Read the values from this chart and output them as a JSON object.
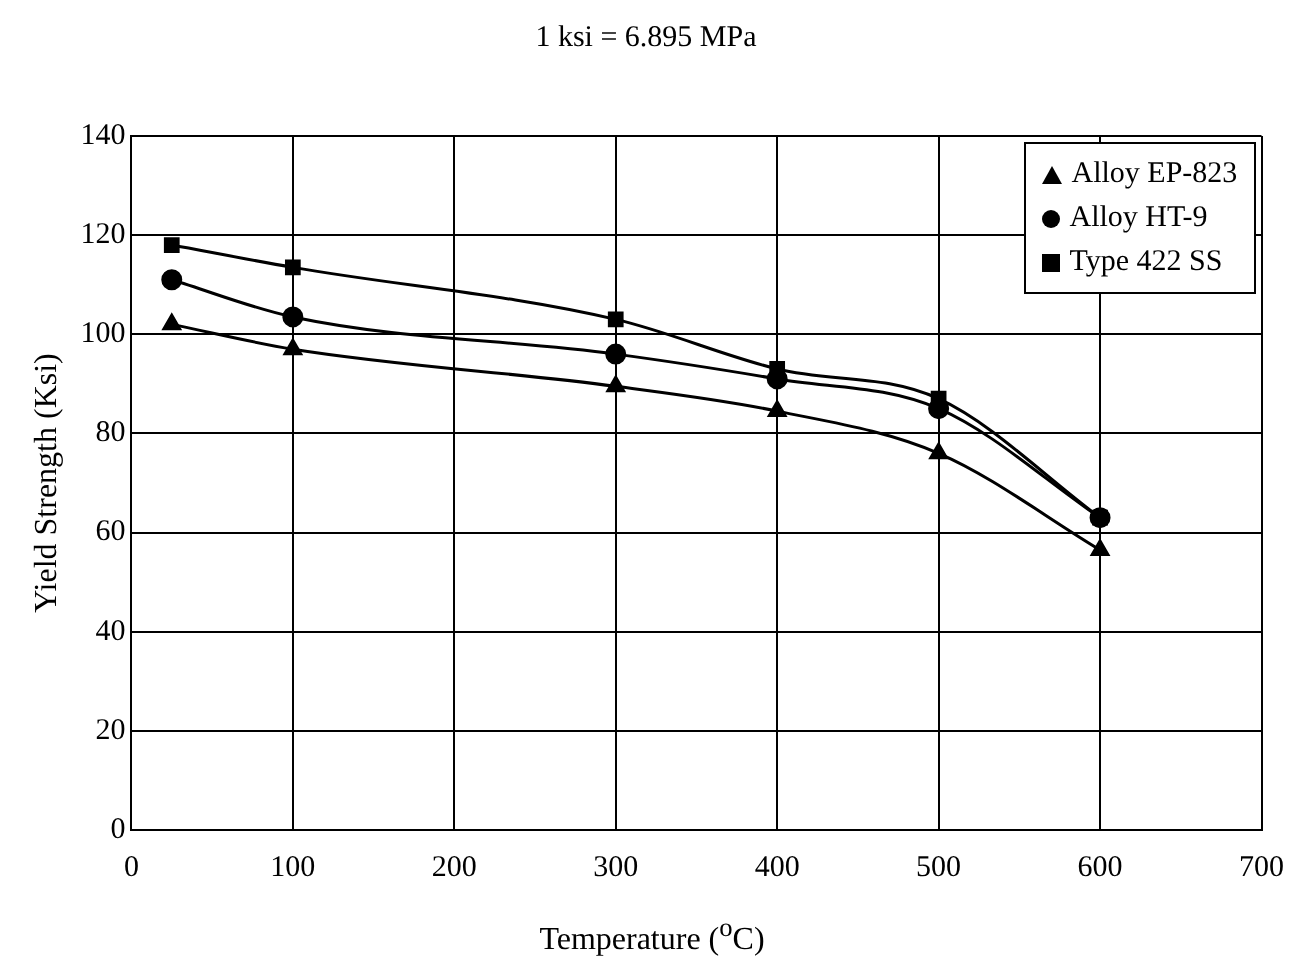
{
  "chart_data": {
    "type": "line",
    "title": "1 ksi = 6.895 MPa",
    "xlabel": "Temperature ($^{o}$C)",
    "ylabel": "Yield Strength (Ksi)",
    "x": [
      25,
      100,
      300,
      400,
      500,
      600
    ],
    "series": [
      {
        "name": "Alloy EP-823",
        "color": "#000000",
        "marker": "triangle",
        "values": [
          102,
          97,
          89.5,
          84.5,
          76,
          56.5
        ]
      },
      {
        "name": "Alloy HT-9",
        "color": "#000000",
        "marker": "circle",
        "values": [
          111,
          103.5,
          96,
          91,
          85,
          63
        ]
      },
      {
        "name": "Type 422 SS",
        "color": "#000000",
        "marker": "square",
        "values": [
          118,
          113.5,
          103,
          93,
          87,
          63
        ]
      }
    ],
    "xlim": [
      0,
      700
    ],
    "xticks": [
      0,
      100,
      200,
      300,
      400,
      500,
      600,
      700
    ],
    "ylim": [
      0,
      140
    ],
    "yticks": [
      0,
      20,
      40,
      60,
      80,
      100,
      120,
      140
    ],
    "grid": true,
    "legend": "top right",
    "line_style": "solid"
  }
}
